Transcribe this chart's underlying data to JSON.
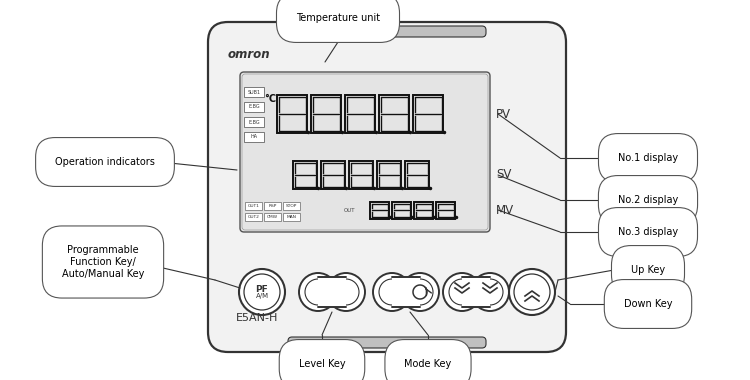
{
  "bg_color": "#ffffff",
  "outline_color": "#333333",
  "title_text": "Temperature unit",
  "omron_text": "omron",
  "model_text": "E5AN-H",
  "labels": {
    "PV": "PV",
    "SV": "SV",
    "MV": "MV",
    "no1": "No.1 display",
    "no2": "No.2 display",
    "no3": "No.3 display",
    "op_ind": "Operation indicators",
    "prog": "Programmable\nFunction Key/\nAuto/Manual Key",
    "level": "Level Key",
    "mode": "Mode Key",
    "up": "Up Key",
    "down": "Down Key"
  },
  "indicator_labels": [
    "SUB1",
    "E.BG",
    "E.BG",
    "HA"
  ],
  "status_labels": [
    "OUT1",
    "RSP",
    "STOP",
    "OUT2",
    "CMW",
    "MAN"
  ],
  "display_color": "#111111",
  "device_fill": "#f2f2f2",
  "screen_fill": "#e4e4e4",
  "bar_fill": "#c0c0c0"
}
